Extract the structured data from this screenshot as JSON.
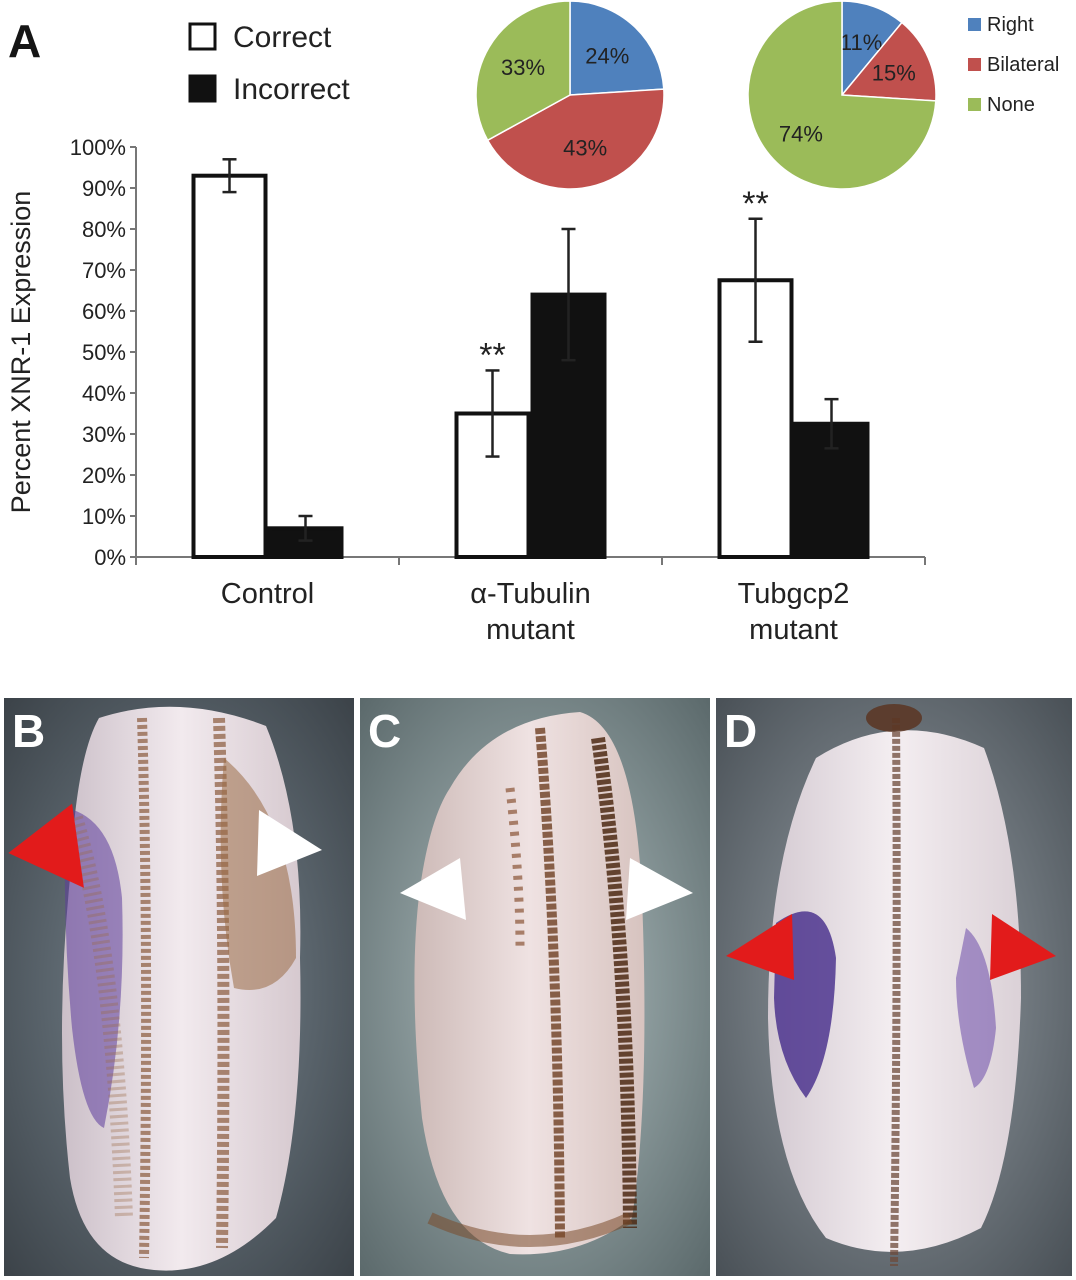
{
  "panels": {
    "a": "A",
    "b": "B",
    "c": "C",
    "d": "D"
  },
  "colors": {
    "right": "#4F81BD",
    "bilateral": "#C0504D",
    "none": "#9BBB59",
    "correct_fill": "#ffffff",
    "incorrect_fill": "#111111",
    "purple_stain": "#4a2a8c",
    "red_arrow": "#e21b1b",
    "white_arrow": "#ffffff"
  },
  "chart_data": [
    {
      "type": "bar",
      "ylabel": "Percent XNR-1 Expression",
      "xlabel": "",
      "ylim": [
        0,
        100
      ],
      "yticks": [
        "0%",
        "10%",
        "20%",
        "30%",
        "40%",
        "50%",
        "60%",
        "70%",
        "80%",
        "90%",
        "100%"
      ],
      "categories": [
        [
          "Control"
        ],
        [
          "α-Tubulin",
          "mutant"
        ],
        [
          "Tubgcp2",
          "mutant"
        ]
      ],
      "series": [
        {
          "name": "Correct",
          "values": [
            93,
            35,
            67.5
          ],
          "errors": [
            4,
            10.5,
            15
          ]
        },
        {
          "name": "Incorrect",
          "values": [
            7,
            64,
            32.5
          ],
          "errors": [
            3,
            16,
            6
          ]
        }
      ],
      "annotations": [
        "",
        "**",
        "**"
      ],
      "legend": "top-left"
    },
    {
      "type": "pie",
      "slices": [
        {
          "name": "Right",
          "value": 24,
          "label": "24%"
        },
        {
          "name": "Bilateral",
          "value": 43,
          "label": "43%"
        },
        {
          "name": "None",
          "value": 33,
          "label": "33%"
        }
      ]
    },
    {
      "type": "pie",
      "slices": [
        {
          "name": "Right",
          "value": 11,
          "label": "11%"
        },
        {
          "name": "Bilateral",
          "value": 15,
          "label": "15%"
        },
        {
          "name": "None",
          "value": 74,
          "label": "74%"
        }
      ],
      "legend": [
        "Right",
        "Bilateral",
        "None"
      ]
    }
  ]
}
